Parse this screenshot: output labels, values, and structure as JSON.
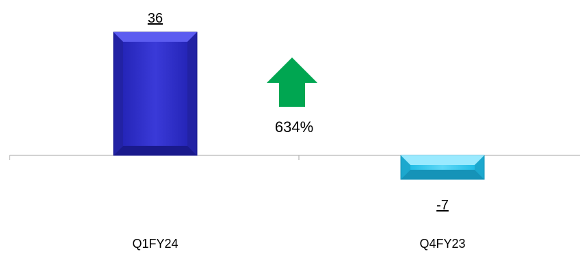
{
  "chart_data": {
    "type": "bar",
    "categories": [
      "Q1FY24",
      "Q4FY23"
    ],
    "values": [
      36,
      -7
    ],
    "value_labels": [
      "36",
      "-7"
    ],
    "ylim": [
      -7,
      36
    ],
    "grid": false,
    "bar_colors": [
      "#2f2fc8",
      "#27c8f0"
    ],
    "annotation": {
      "text": "634%",
      "icon": "up-arrow-icon",
      "color": "#00a651"
    }
  }
}
